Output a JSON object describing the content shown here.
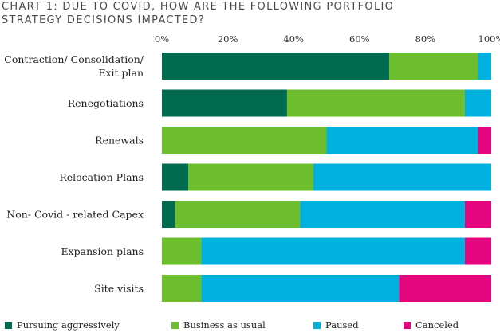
{
  "title_lines": [
    "CHART 1: DUE TO COVID, HOW ARE THE FOLLOWING PORTFOLIO",
    "STRATEGY DECISIONS IMPACTED?"
  ],
  "legend": [
    {
      "label": "Pursuing aggressively",
      "color": "#006B4E"
    },
    {
      "label": "Business as usual",
      "color": "#6CBE2C"
    },
    {
      "label": "Paused",
      "color": "#00B0DE"
    },
    {
      "label": "Canceled",
      "color": "#E5067F"
    }
  ],
  "chart_data": {
    "type": "bar",
    "orientation": "horizontal",
    "stacked": true,
    "title": "CHART 1: DUE TO COVID, HOW ARE THE FOLLOWING PORTFOLIO STRATEGY DECISIONS IMPACTED?",
    "categories": [
      [
        "Contraction/ Consolidation/",
        "Exit plan"
      ],
      [
        "Renegotiations"
      ],
      [
        "Renewals"
      ],
      [
        "Relocation Plans"
      ],
      [
        "Non- Covid - related Capex"
      ],
      [
        "Expansion plans"
      ],
      [
        "Site visits"
      ]
    ],
    "series": [
      {
        "name": "Pursuing aggressively",
        "color": "#006B4E",
        "values": [
          69,
          38,
          0,
          8,
          4,
          0,
          0
        ]
      },
      {
        "name": "Business as usual",
        "color": "#6CBE2C",
        "values": [
          27,
          54,
          50,
          38,
          38,
          12,
          12
        ]
      },
      {
        "name": "Paused",
        "color": "#00B0DE",
        "values": [
          4,
          8,
          46,
          54,
          50,
          80,
          60
        ]
      },
      {
        "name": "Canceled",
        "color": "#E5067F",
        "values": [
          0,
          0,
          4,
          0,
          8,
          8,
          28
        ]
      }
    ],
    "xlim": [
      0,
      100
    ],
    "x_ticks": [
      "0%",
      "20%",
      "40%",
      "60%",
      "80%",
      "100%"
    ],
    "grid": false,
    "legend_position": "bottom"
  }
}
